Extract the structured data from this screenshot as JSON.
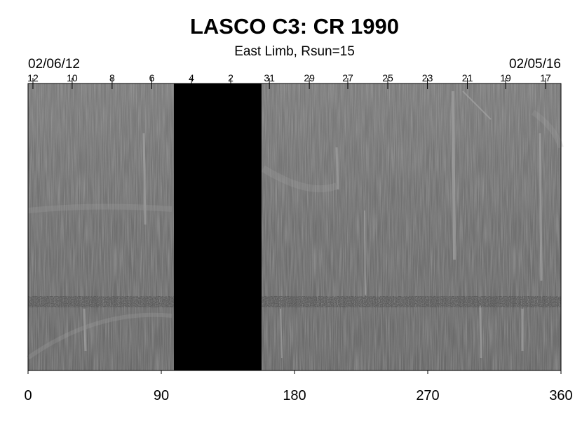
{
  "chart_data": {
    "type": "synoptic-map",
    "title": "LASCO C3: CR 1990",
    "subtitle": "East Limb, Rsun=15",
    "start_date": "02/06/12",
    "end_date": "02/05/16",
    "xlim": [
      0,
      360
    ],
    "xticks": [
      0,
      90,
      180,
      270,
      360
    ],
    "top_ticks": [
      {
        "value": 3.3,
        "label": "12"
      },
      {
        "value": 29.8,
        "label": "10"
      },
      {
        "value": 56.8,
        "label": "8"
      },
      {
        "value": 83.6,
        "label": "6"
      },
      {
        "value": 110.4,
        "label": "4"
      },
      {
        "value": 136.9,
        "label": "2"
      },
      {
        "value": 163,
        "label": "31"
      },
      {
        "value": 190,
        "label": "29"
      },
      {
        "value": 216,
        "label": "27"
      },
      {
        "value": 243,
        "label": "25"
      },
      {
        "value": 269.8,
        "label": "23"
      },
      {
        "value": 296.8,
        "label": "21"
      },
      {
        "value": 322.6,
        "label": "19"
      },
      {
        "value": 349.6,
        "label": "17"
      }
    ],
    "data_gaps": [
      [
        98.5,
        157.7
      ]
    ]
  }
}
